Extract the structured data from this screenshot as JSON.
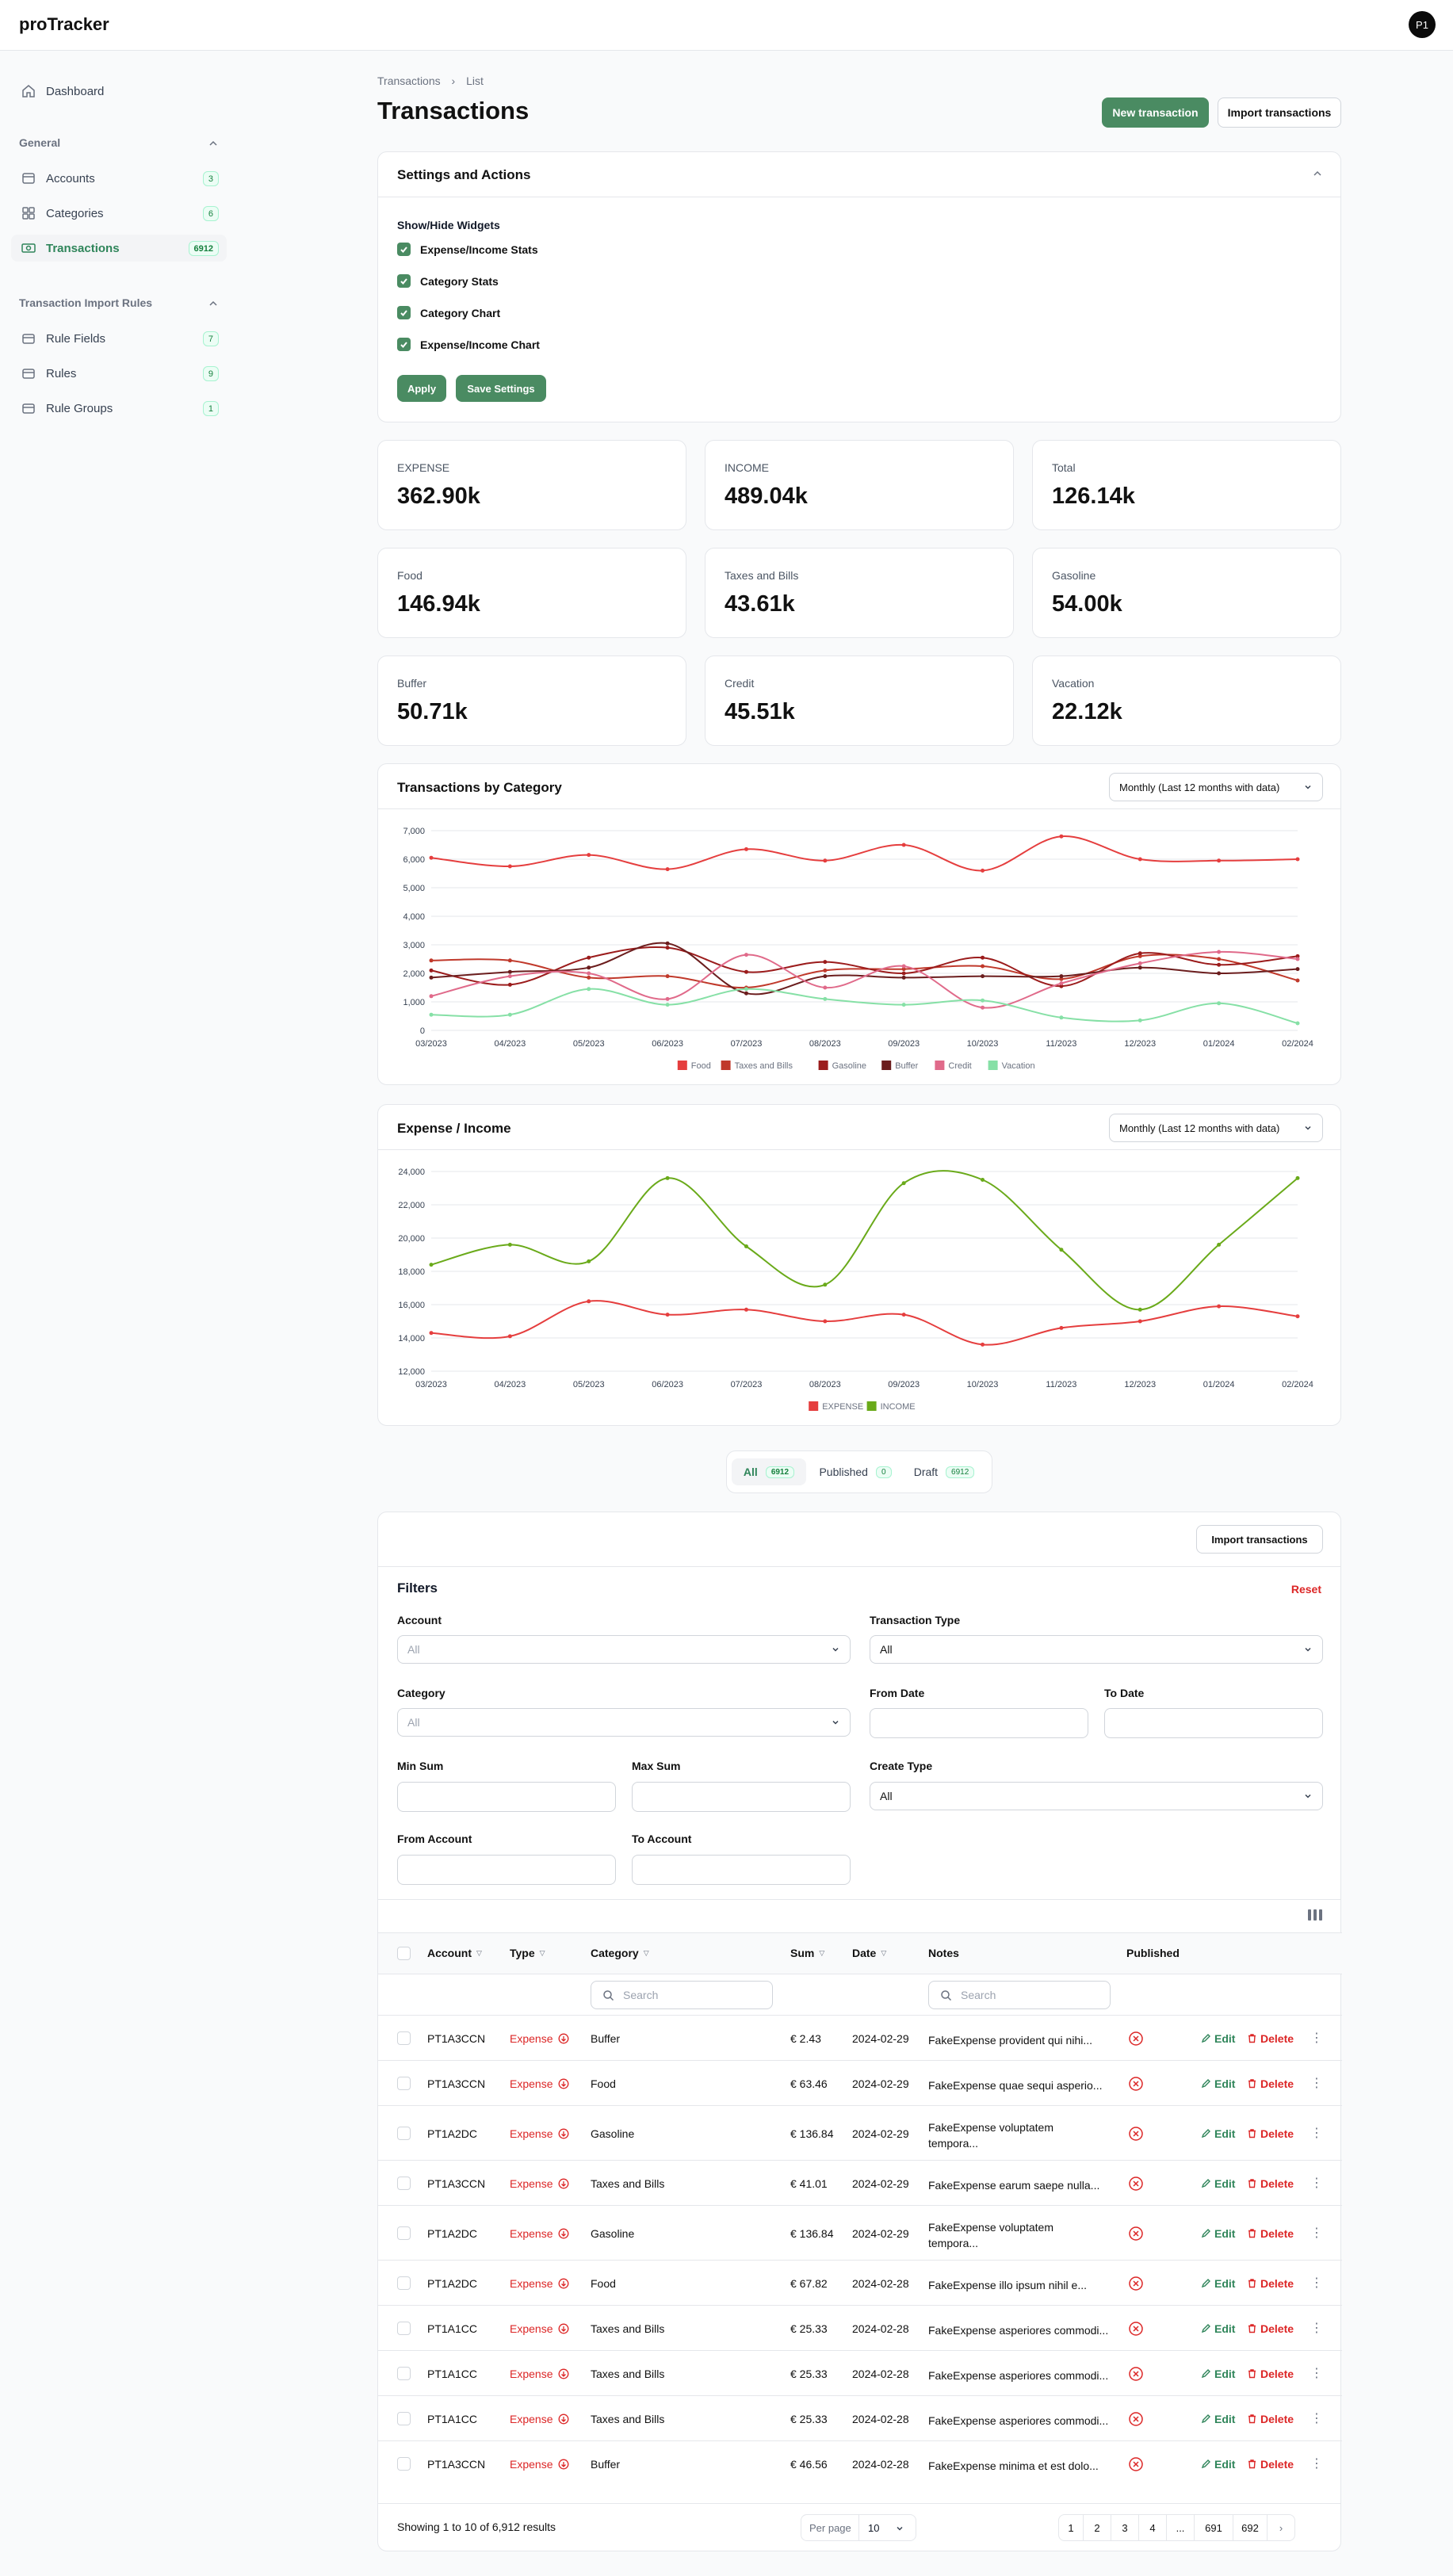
{
  "app": {
    "brand": "proTracker",
    "avatar": "P1"
  },
  "sidebar": {
    "dashboard": "Dashboard",
    "group_general": "General",
    "group_rules": "Transaction Import Rules",
    "items": [
      {
        "label": "Accounts",
        "badge": "3",
        "icon": "folder-icon"
      },
      {
        "label": "Categories",
        "badge": "6",
        "icon": "grid-icon"
      },
      {
        "label": "Transactions",
        "badge": "6912",
        "icon": "cash-icon"
      },
      {
        "label": "Rule Fields",
        "badge": "7",
        "icon": "folder-icon"
      },
      {
        "label": "Rules",
        "badge": "9",
        "icon": "folder-icon"
      },
      {
        "label": "Rule Groups",
        "badge": "1",
        "icon": "folder-icon"
      }
    ]
  },
  "header": {
    "crumb1": "Transactions",
    "crumb2": "List",
    "title": "Transactions",
    "new_btn": "New transaction",
    "import_btn": "Import transactions"
  },
  "settings": {
    "title": "Settings and Actions",
    "subtitle": "Show/Hide Widgets",
    "options": [
      "Expense/Income Stats",
      "Category Stats",
      "Category Chart",
      "Expense/Income Chart"
    ],
    "apply": "Apply",
    "save": "Save Settings"
  },
  "stats": [
    {
      "label": "EXPENSE",
      "value": "362.90k"
    },
    {
      "label": "INCOME",
      "value": "489.04k"
    },
    {
      "label": "Total",
      "value": "126.14k"
    },
    {
      "label": "Food",
      "value": "146.94k"
    },
    {
      "label": "Taxes and Bills",
      "value": "43.61k"
    },
    {
      "label": "Gasoline",
      "value": "54.00k"
    },
    {
      "label": "Buffer",
      "value": "50.71k"
    },
    {
      "label": "Credit",
      "value": "45.51k"
    },
    {
      "label": "Vacation",
      "value": "22.12k"
    }
  ],
  "chart1_card": {
    "title": "Transactions by Category",
    "period": "Monthly (Last 12 months with data)"
  },
  "chart2_card": {
    "title": "Expense / Income",
    "period": "Monthly (Last 12 months with data)"
  },
  "chart_data": [
    {
      "type": "line",
      "x": [
        "03/2023",
        "04/2023",
        "05/2023",
        "06/2023",
        "07/2023",
        "08/2023",
        "09/2023",
        "10/2023",
        "11/2023",
        "12/2023",
        "01/2024",
        "02/2024"
      ],
      "ylim": [
        0,
        7000
      ],
      "yticks": [
        "0",
        "1,000",
        "2,000",
        "3,000",
        "4,000",
        "5,000",
        "6,000",
        "7,000"
      ],
      "series": [
        {
          "name": "Food",
          "color": "#e53e3e",
          "values": [
            6050,
            5750,
            6150,
            5650,
            6350,
            5950,
            6500,
            5600,
            6800,
            6000,
            5950,
            6000
          ]
        },
        {
          "name": "Taxes and Bills",
          "color": "#c0392b",
          "values": [
            2450,
            2450,
            1850,
            1900,
            1500,
            2100,
            2150,
            2250,
            1800,
            2600,
            2500,
            1750
          ]
        },
        {
          "name": "Gasoline",
          "color": "#9b1c1c",
          "values": [
            2100,
            1600,
            2550,
            2900,
            2050,
            2400,
            2000,
            2550,
            1550,
            2700,
            2300,
            2600
          ]
        },
        {
          "name": "Buffer",
          "color": "#6b1d1d",
          "values": [
            1850,
            2050,
            2200,
            3050,
            1300,
            1900,
            1850,
            1900,
            1900,
            2200,
            2000,
            2150
          ]
        },
        {
          "name": "Credit",
          "color": "#e06a8a",
          "values": [
            1200,
            1900,
            2000,
            1100,
            2650,
            1500,
            2250,
            800,
            1650,
            2350,
            2750,
            2500
          ]
        },
        {
          "name": "Vacation",
          "color": "#86e0a6",
          "values": [
            550,
            550,
            1450,
            900,
            1450,
            1100,
            900,
            1050,
            450,
            350,
            950,
            250
          ]
        }
      ]
    },
    {
      "type": "line",
      "x": [
        "03/2023",
        "04/2023",
        "05/2023",
        "06/2023",
        "07/2023",
        "08/2023",
        "09/2023",
        "10/2023",
        "11/2023",
        "12/2023",
        "01/2024",
        "02/2024"
      ],
      "ylim": [
        12000,
        24000
      ],
      "yticks": [
        "12,000",
        "14,000",
        "16,000",
        "18,000",
        "20,000",
        "22,000",
        "24,000"
      ],
      "series": [
        {
          "name": "EXPENSE",
          "color": "#e53e3e",
          "values": [
            14300,
            14100,
            16200,
            15400,
            15700,
            15000,
            15400,
            13600,
            14600,
            15000,
            15900,
            15300
          ]
        },
        {
          "name": "INCOME",
          "color": "#6aaa1a",
          "values": [
            18400,
            19600,
            18600,
            23600,
            19500,
            17200,
            23300,
            23500,
            19300,
            15700,
            19600,
            23600
          ]
        }
      ]
    }
  ],
  "tabs": [
    {
      "label": "All",
      "badge": "6912"
    },
    {
      "label": "Published",
      "badge": "0"
    },
    {
      "label": "Draft",
      "badge": "6912"
    }
  ],
  "filters": {
    "import_btn": "Import transactions",
    "title": "Filters",
    "reset": "Reset",
    "account": "Account",
    "account_ph": "All",
    "type": "Transaction Type",
    "type_val": "All",
    "category": "Category",
    "category_ph": "All",
    "from_date": "From Date",
    "to_date": "To Date",
    "min_sum": "Min Sum",
    "max_sum": "Max Sum",
    "create_type": "Create Type",
    "create_val": "All",
    "from_account": "From Account",
    "to_account": "To Account"
  },
  "table": {
    "headers": {
      "account": "Account",
      "type": "Type",
      "category": "Category",
      "sum": "Sum",
      "date": "Date",
      "notes": "Notes",
      "published": "Published"
    },
    "search_ph": "Search",
    "edit": "Edit",
    "delete": "Delete",
    "rows": [
      {
        "account": "PT1A3CCN",
        "type": "Expense",
        "category": "Buffer",
        "sum": "€ 2.43",
        "date": "2024-02-29",
        "notes1": "FakeExpense provident qui nihi...",
        "notes2": ""
      },
      {
        "account": "PT1A3CCN",
        "type": "Expense",
        "category": "Food",
        "sum": "€ 63.46",
        "date": "2024-02-29",
        "notes1": "FakeExpense quae sequi asperio...",
        "notes2": ""
      },
      {
        "account": "PT1A2DC",
        "type": "Expense",
        "category": "Gasoline",
        "sum": "€ 136.84",
        "date": "2024-02-29",
        "notes1": "FakeExpense voluptatem",
        "notes2": "tempora..."
      },
      {
        "account": "PT1A3CCN",
        "type": "Expense",
        "category": "Taxes and Bills",
        "sum": "€ 41.01",
        "date": "2024-02-29",
        "notes1": "FakeExpense earum saepe nulla...",
        "notes2": ""
      },
      {
        "account": "PT1A2DC",
        "type": "Expense",
        "category": "Gasoline",
        "sum": "€ 136.84",
        "date": "2024-02-29",
        "notes1": "FakeExpense voluptatem",
        "notes2": "tempora..."
      },
      {
        "account": "PT1A2DC",
        "type": "Expense",
        "category": "Food",
        "sum": "€ 67.82",
        "date": "2024-02-28",
        "notes1": "FakeExpense illo ipsum nihil e...",
        "notes2": ""
      },
      {
        "account": "PT1A1CC",
        "type": "Expense",
        "category": "Taxes and Bills",
        "sum": "€ 25.33",
        "date": "2024-02-28",
        "notes1": "FakeExpense asperiores commodi...",
        "notes2": ""
      },
      {
        "account": "PT1A1CC",
        "type": "Expense",
        "category": "Taxes and Bills",
        "sum": "€ 25.33",
        "date": "2024-02-28",
        "notes1": "FakeExpense asperiores commodi...",
        "notes2": ""
      },
      {
        "account": "PT1A1CC",
        "type": "Expense",
        "category": "Taxes and Bills",
        "sum": "€ 25.33",
        "date": "2024-02-28",
        "notes1": "FakeExpense asperiores commodi...",
        "notes2": ""
      },
      {
        "account": "PT1A3CCN",
        "type": "Expense",
        "category": "Buffer",
        "sum": "€ 46.56",
        "date": "2024-02-28",
        "notes1": "FakeExpense minima et est dolo...",
        "notes2": ""
      }
    ]
  },
  "pagination": {
    "showing": "Showing 1 to 10 of 6,912 results",
    "per_page": "Per page",
    "per_page_val": "10",
    "pages": [
      "1",
      "2",
      "3",
      "4",
      "...",
      "691",
      "692"
    ]
  },
  "colors": {
    "accent": "#4a8b62",
    "expense": "#dc2626",
    "income": "#6aaa1a"
  }
}
